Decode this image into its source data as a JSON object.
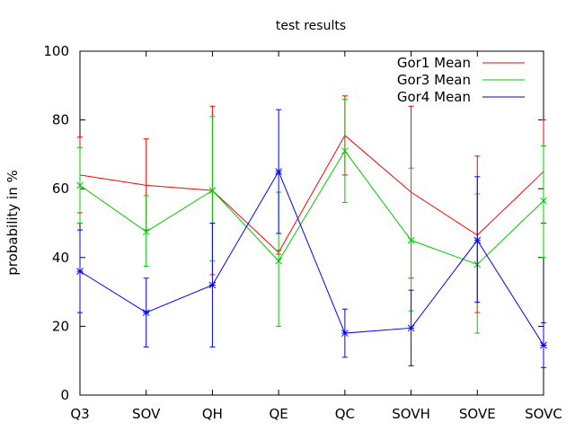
{
  "chart_data": {
    "type": "line",
    "title": "test results",
    "xlabel": "",
    "ylabel": "probability in %",
    "categories": [
      "Q3",
      "SOV",
      "QH",
      "QE",
      "QC",
      "SOVH",
      "SOVE",
      "SOVC"
    ],
    "ylim": [
      0,
      100
    ],
    "yticks": [
      0,
      20,
      40,
      60,
      80,
      100
    ],
    "grid": false,
    "legend_position": "top-right",
    "series": [
      {
        "name": "Gor1 Mean",
        "color": "#ff0000",
        "values": [
          64,
          61,
          59.5,
          41.5,
          75.5,
          59,
          46.5,
          65
        ],
        "err_low": [
          53,
          48,
          35,
          41,
          64,
          34,
          24,
          50
        ],
        "err_high": [
          75,
          74.5,
          84,
          42,
          87,
          84,
          69.5,
          80
        ]
      },
      {
        "name": "Gor3 Mean",
        "color": "#00cc00",
        "values": [
          61,
          47.5,
          59.5,
          39,
          71,
          45,
          38,
          56.5
        ],
        "err_low": [
          50,
          37.5,
          39,
          20,
          56,
          24.5,
          18,
          40
        ],
        "err_high": [
          72,
          58,
          81,
          59,
          86,
          66,
          58.5,
          72.5
        ]
      },
      {
        "name": "Gor4 Mean",
        "color": "#0000ff",
        "values": [
          36,
          24,
          32,
          65,
          18,
          19.5,
          45,
          14.5
        ],
        "err_low": [
          24,
          14,
          14,
          47,
          11,
          8.5,
          27,
          8
        ],
        "err_high": [
          48,
          34,
          50,
          83,
          25,
          30.5,
          63.5,
          21
        ]
      }
    ]
  }
}
